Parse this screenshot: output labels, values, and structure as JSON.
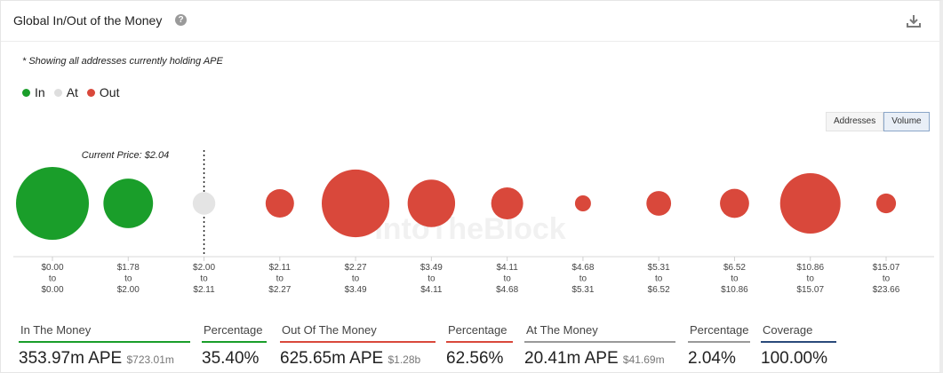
{
  "header": {
    "title": "Global In/Out of the Money",
    "help_glyph": "?"
  },
  "note": "* Showing all addresses currently holding APE",
  "legend": [
    {
      "label": "In",
      "color": "#1a9e2a"
    },
    {
      "label": "At",
      "color": "#dedede"
    },
    {
      "label": "Out",
      "color": "#d9483b"
    }
  ],
  "toggle": {
    "addresses_label": "Addresses",
    "volume_label": "Volume",
    "active": "Volume"
  },
  "watermark": "IntoTheBlock",
  "chart_data": {
    "type": "bubble",
    "current_price_label": "Current Price: $2.04",
    "current_price_marker_index": 2,
    "buckets": [
      {
        "from": "$0.00",
        "to": "$0.00",
        "status": "in",
        "relative_size": 1.0
      },
      {
        "from": "$1.78",
        "to": "$2.00",
        "status": "in",
        "relative_size": 0.68
      },
      {
        "from": "$2.00",
        "to": "$2.11",
        "status": "at",
        "relative_size": 0.31
      },
      {
        "from": "$2.11",
        "to": "$2.27",
        "status": "out",
        "relative_size": 0.39
      },
      {
        "from": "$2.27",
        "to": "$3.49",
        "status": "out",
        "relative_size": 0.93
      },
      {
        "from": "$3.49",
        "to": "$4.11",
        "status": "out",
        "relative_size": 0.65
      },
      {
        "from": "$4.11",
        "to": "$4.68",
        "status": "out",
        "relative_size": 0.44
      },
      {
        "from": "$4.68",
        "to": "$5.31",
        "status": "out",
        "relative_size": 0.22
      },
      {
        "from": "$5.31",
        "to": "$6.52",
        "status": "out",
        "relative_size": 0.34
      },
      {
        "from": "$6.52",
        "to": "$10.86",
        "status": "out",
        "relative_size": 0.4
      },
      {
        "from": "$10.86",
        "to": "$15.07",
        "status": "out",
        "relative_size": 0.83
      },
      {
        "from": "$15.07",
        "to": "$23.66",
        "status": "out",
        "relative_size": 0.27
      }
    ],
    "range_word": "to",
    "colors": {
      "in": "#1a9e2a",
      "at": "#e4e4e4",
      "out": "#d9483b"
    }
  },
  "stats": [
    {
      "label": "In The Money",
      "value": "353.97m APE",
      "sub": "$723.01m",
      "color": "#1a9e2a"
    },
    {
      "label": "Percentage",
      "value": "35.40%",
      "sub": "",
      "color": "#1a9e2a"
    },
    {
      "label": "Out Of The Money",
      "value": "625.65m APE",
      "sub": "$1.28b",
      "color": "#d9483b"
    },
    {
      "label": "Percentage",
      "value": "62.56%",
      "sub": "",
      "color": "#d9483b"
    },
    {
      "label": "At The Money",
      "value": "20.41m APE",
      "sub": "$41.69m",
      "color": "#9a9a9a"
    },
    {
      "label": "Percentage",
      "value": "2.04%",
      "sub": "",
      "color": "#9a9a9a"
    },
    {
      "label": "Coverage",
      "value": "100.00%",
      "sub": "",
      "color": "#2a4a7a"
    }
  ]
}
